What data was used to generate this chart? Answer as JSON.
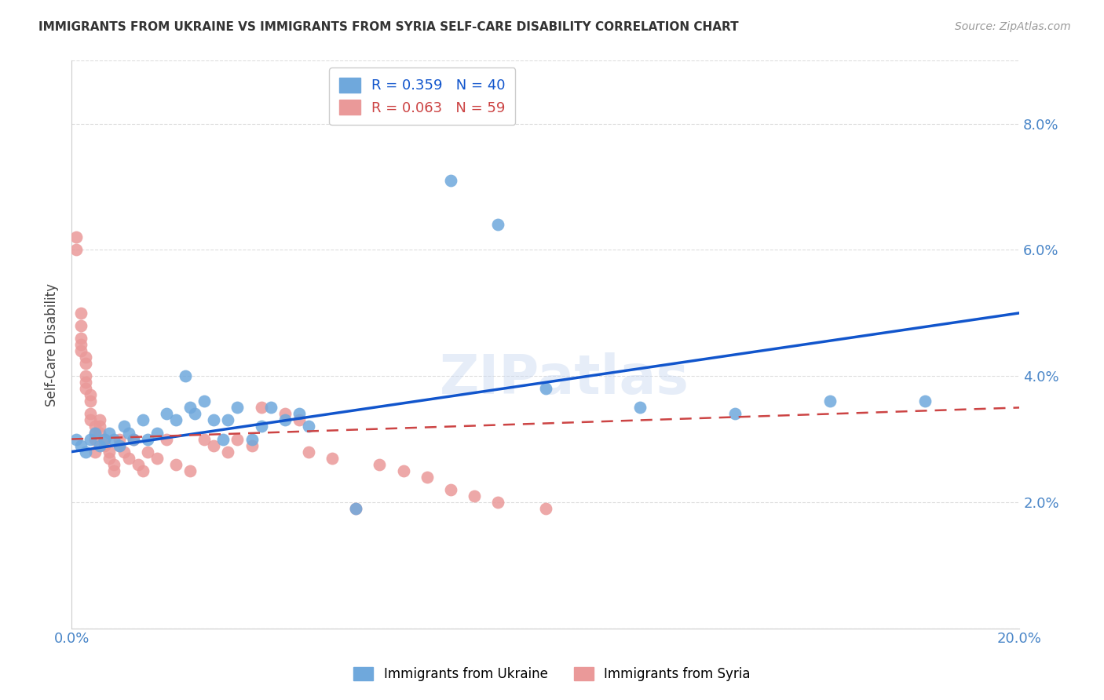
{
  "title": "IMMIGRANTS FROM UKRAINE VS IMMIGRANTS FROM SYRIA SELF-CARE DISABILITY CORRELATION CHART",
  "source": "Source: ZipAtlas.com",
  "ylabel_label": "Self-Care Disability",
  "xlim": [
    0.0,
    0.2
  ],
  "ylim": [
    0.0,
    0.09
  ],
  "xticks": [
    0.0,
    0.02,
    0.04,
    0.06,
    0.08,
    0.1,
    0.12,
    0.14,
    0.16,
    0.18,
    0.2
  ],
  "yticks": [
    0.0,
    0.02,
    0.04,
    0.06,
    0.08
  ],
  "ukraine_color": "#6fa8dc",
  "syria_color": "#ea9999",
  "ukraine_line_color": "#1155cc",
  "syria_line_color": "#cc4444",
  "background_color": "#ffffff",
  "grid_color": "#dddddd",
  "axis_color": "#4a86c8",
  "ukraine_points": [
    [
      0.001,
      0.03
    ],
    [
      0.002,
      0.029
    ],
    [
      0.003,
      0.028
    ],
    [
      0.004,
      0.03
    ],
    [
      0.005,
      0.031
    ],
    [
      0.006,
      0.029
    ],
    [
      0.007,
      0.03
    ],
    [
      0.008,
      0.031
    ],
    [
      0.009,
      0.03
    ],
    [
      0.01,
      0.029
    ],
    [
      0.011,
      0.032
    ],
    [
      0.012,
      0.031
    ],
    [
      0.013,
      0.03
    ],
    [
      0.015,
      0.033
    ],
    [
      0.016,
      0.03
    ],
    [
      0.018,
      0.031
    ],
    [
      0.02,
      0.034
    ],
    [
      0.022,
      0.033
    ],
    [
      0.024,
      0.04
    ],
    [
      0.025,
      0.035
    ],
    [
      0.026,
      0.034
    ],
    [
      0.028,
      0.036
    ],
    [
      0.03,
      0.033
    ],
    [
      0.032,
      0.03
    ],
    [
      0.033,
      0.033
    ],
    [
      0.035,
      0.035
    ],
    [
      0.038,
      0.03
    ],
    [
      0.04,
      0.032
    ],
    [
      0.042,
      0.035
    ],
    [
      0.045,
      0.033
    ],
    [
      0.048,
      0.034
    ],
    [
      0.05,
      0.032
    ],
    [
      0.06,
      0.019
    ],
    [
      0.08,
      0.071
    ],
    [
      0.09,
      0.064
    ],
    [
      0.1,
      0.038
    ],
    [
      0.12,
      0.035
    ],
    [
      0.14,
      0.034
    ],
    [
      0.16,
      0.036
    ],
    [
      0.18,
      0.036
    ]
  ],
  "syria_points": [
    [
      0.001,
      0.06
    ],
    [
      0.001,
      0.062
    ],
    [
      0.002,
      0.05
    ],
    [
      0.002,
      0.048
    ],
    [
      0.002,
      0.046
    ],
    [
      0.002,
      0.045
    ],
    [
      0.002,
      0.044
    ],
    [
      0.003,
      0.043
    ],
    [
      0.003,
      0.042
    ],
    [
      0.003,
      0.04
    ],
    [
      0.003,
      0.039
    ],
    [
      0.003,
      0.038
    ],
    [
      0.004,
      0.037
    ],
    [
      0.004,
      0.036
    ],
    [
      0.004,
      0.034
    ],
    [
      0.004,
      0.033
    ],
    [
      0.005,
      0.032
    ],
    [
      0.005,
      0.031
    ],
    [
      0.005,
      0.03
    ],
    [
      0.005,
      0.028
    ],
    [
      0.006,
      0.033
    ],
    [
      0.006,
      0.032
    ],
    [
      0.006,
      0.031
    ],
    [
      0.007,
      0.03
    ],
    [
      0.007,
      0.029
    ],
    [
      0.008,
      0.028
    ],
    [
      0.008,
      0.027
    ],
    [
      0.009,
      0.026
    ],
    [
      0.009,
      0.025
    ],
    [
      0.01,
      0.03
    ],
    [
      0.01,
      0.029
    ],
    [
      0.011,
      0.028
    ],
    [
      0.012,
      0.027
    ],
    [
      0.013,
      0.03
    ],
    [
      0.014,
      0.026
    ],
    [
      0.015,
      0.025
    ],
    [
      0.016,
      0.028
    ],
    [
      0.018,
      0.027
    ],
    [
      0.02,
      0.03
    ],
    [
      0.022,
      0.026
    ],
    [
      0.025,
      0.025
    ],
    [
      0.028,
      0.03
    ],
    [
      0.03,
      0.029
    ],
    [
      0.033,
      0.028
    ],
    [
      0.035,
      0.03
    ],
    [
      0.038,
      0.029
    ],
    [
      0.04,
      0.035
    ],
    [
      0.045,
      0.034
    ],
    [
      0.048,
      0.033
    ],
    [
      0.05,
      0.028
    ],
    [
      0.055,
      0.027
    ],
    [
      0.06,
      0.019
    ],
    [
      0.065,
      0.026
    ],
    [
      0.07,
      0.025
    ],
    [
      0.075,
      0.024
    ],
    [
      0.08,
      0.022
    ],
    [
      0.085,
      0.021
    ],
    [
      0.09,
      0.02
    ],
    [
      0.1,
      0.019
    ]
  ]
}
